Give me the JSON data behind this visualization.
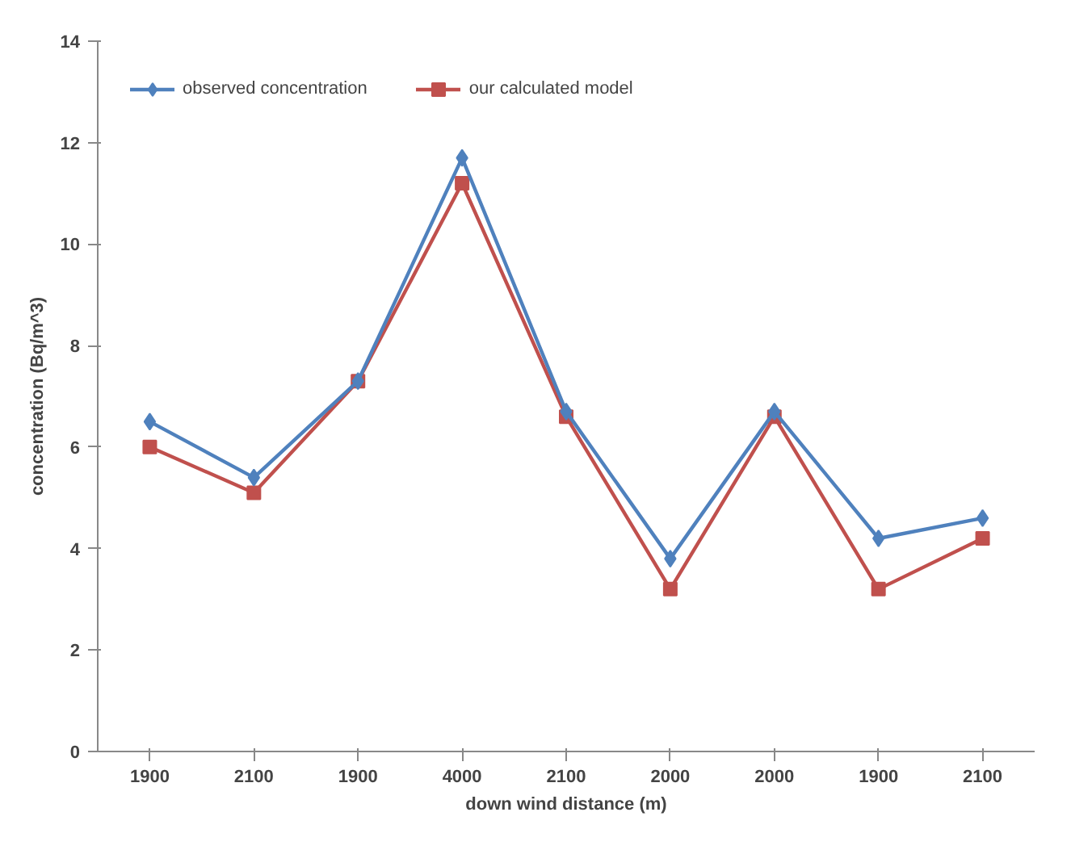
{
  "chart_data": {
    "type": "line",
    "xlabel": "down wind distance (m)",
    "ylabel": "concentration (Bq/m^3)",
    "categories": [
      "1900",
      "2100",
      "1900",
      "4000",
      "2100",
      "2000",
      "2000",
      "1900",
      "2100"
    ],
    "ylim": [
      0,
      14
    ],
    "yticks": [
      0,
      2,
      4,
      6,
      8,
      10,
      12,
      14
    ],
    "grid": false,
    "legend": "top left",
    "line_style": "solid",
    "series": [
      {
        "name": "observed concentration",
        "color": "#4f81bd",
        "marker": "diamond",
        "values": [
          6.5,
          5.4,
          7.3,
          11.7,
          6.7,
          3.8,
          6.7,
          4.2,
          4.6
        ]
      },
      {
        "name": "our calculated model",
        "color": "#c0504d",
        "marker": "square",
        "values": [
          6.0,
          5.1,
          7.3,
          11.2,
          6.6,
          3.2,
          6.6,
          3.2,
          4.2
        ]
      }
    ]
  }
}
